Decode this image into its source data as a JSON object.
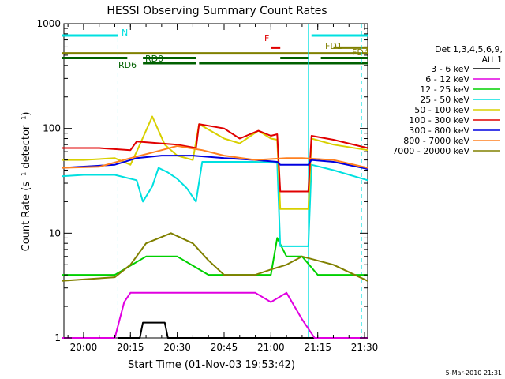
{
  "chart_data": {
    "type": "line",
    "title": "HESSI Observing Summary Count Rates",
    "xlabel": "Start Time (01-Nov-03 19:53:42)",
    "ylabel": "Count Rate (s⁻¹ detector⁻¹)",
    "yscale": "log",
    "ylim": [
      1,
      1000
    ],
    "xlim": [
      "19:53:42",
      "21:31:00"
    ],
    "x_ticks": [
      "20:00",
      "20:15",
      "20:30",
      "20:45",
      "21:00",
      "21:15",
      "21:30"
    ],
    "y_ticks": [
      "1",
      "10",
      "100",
      "1000"
    ],
    "grid": false,
    "legend_position": "right",
    "legend_header": [
      "Det 1,3,4,5,6,9,",
      "Att 1"
    ],
    "footer_date": "5-Mar-2010 21:31",
    "series": [
      {
        "name": "3 - 6 keV",
        "color": "#000000",
        "points": [
          [
            "20:11",
            1
          ],
          [
            "20:18",
            1
          ],
          [
            "20:19",
            1.4
          ],
          [
            "20:26",
            1.4
          ],
          [
            "20:27",
            1
          ],
          [
            "21:31",
            1
          ]
        ]
      },
      {
        "name": "6 - 12 keV",
        "color": "#e000e0",
        "points": [
          [
            "19:53",
            1
          ],
          [
            "20:10",
            1
          ],
          [
            "20:13",
            2.2
          ],
          [
            "20:15",
            2.7
          ],
          [
            "20:30",
            2.7
          ],
          [
            "20:45",
            2.7
          ],
          [
            "20:55",
            2.7
          ],
          [
            "21:00",
            2.2
          ],
          [
            "21:05",
            2.7
          ],
          [
            "21:10",
            1.5
          ],
          [
            "21:14",
            1
          ],
          [
            "21:31",
            1
          ]
        ]
      },
      {
        "name": "12 - 25 keV",
        "color": "#00d000",
        "points": [
          [
            "19:53",
            4
          ],
          [
            "20:10",
            4
          ],
          [
            "20:20",
            6
          ],
          [
            "20:30",
            6
          ],
          [
            "20:40",
            4
          ],
          [
            "20:50",
            4
          ],
          [
            "21:00",
            4
          ],
          [
            "21:02",
            9
          ],
          [
            "21:05",
            6
          ],
          [
            "21:10",
            6
          ],
          [
            "21:15",
            4
          ],
          [
            "21:31",
            4
          ]
        ]
      },
      {
        "name": "25 - 50 keV",
        "color": "#00e0e0",
        "points": [
          [
            "19:53",
            35
          ],
          [
            "20:00",
            36
          ],
          [
            "20:10",
            36
          ],
          [
            "20:17",
            32
          ],
          [
            "20:19",
            20
          ],
          [
            "20:22",
            28
          ],
          [
            "20:24",
            42
          ],
          [
            "20:27",
            38
          ],
          [
            "20:30",
            33
          ],
          [
            "20:33",
            27
          ],
          [
            "20:36",
            20
          ],
          [
            "20:38",
            48
          ],
          [
            "20:45",
            48
          ],
          [
            "20:55",
            48
          ],
          [
            "21:02",
            47
          ],
          [
            "21:03",
            7.5
          ],
          [
            "21:12",
            7.5
          ],
          [
            "21:13",
            45
          ],
          [
            "21:20",
            40
          ],
          [
            "21:31",
            32
          ]
        ]
      },
      {
        "name": "50 - 100 keV",
        "color": "#d8d000",
        "points": [
          [
            "19:53",
            50
          ],
          [
            "20:00",
            50
          ],
          [
            "20:10",
            52
          ],
          [
            "20:15",
            45
          ],
          [
            "20:17",
            60
          ],
          [
            "20:22",
            130
          ],
          [
            "20:26",
            70
          ],
          [
            "20:30",
            55
          ],
          [
            "20:35",
            50
          ],
          [
            "20:37",
            110
          ],
          [
            "20:45",
            80
          ],
          [
            "20:50",
            72
          ],
          [
            "20:56",
            95
          ],
          [
            "21:00",
            80
          ],
          [
            "21:02",
            78
          ],
          [
            "21:03",
            17
          ],
          [
            "21:12",
            17
          ],
          [
            "21:13",
            80
          ],
          [
            "21:20",
            70
          ],
          [
            "21:31",
            62
          ]
        ]
      },
      {
        "name": "100 - 300 keV",
        "color": "#e00000",
        "points": [
          [
            "19:53",
            65
          ],
          [
            "20:05",
            65
          ],
          [
            "20:15",
            62
          ],
          [
            "20:17",
            75
          ],
          [
            "20:30",
            70
          ],
          [
            "20:36",
            65
          ],
          [
            "20:37",
            110
          ],
          [
            "20:45",
            100
          ],
          [
            "20:50",
            80
          ],
          [
            "20:56",
            95
          ],
          [
            "21:00",
            85
          ],
          [
            "21:02",
            88
          ],
          [
            "21:03",
            25
          ],
          [
            "21:12",
            25
          ],
          [
            "21:13",
            85
          ],
          [
            "21:20",
            78
          ],
          [
            "21:31",
            65
          ]
        ]
      },
      {
        "name": "300 - 800 keV",
        "color": "#0000e0",
        "points": [
          [
            "19:53",
            42
          ],
          [
            "20:10",
            45
          ],
          [
            "20:17",
            52
          ],
          [
            "20:25",
            55
          ],
          [
            "20:35",
            55
          ],
          [
            "20:45",
            52
          ],
          [
            "20:55",
            50
          ],
          [
            "21:02",
            48
          ],
          [
            "21:03",
            45
          ],
          [
            "21:12",
            45
          ],
          [
            "21:13",
            50
          ],
          [
            "21:20",
            48
          ],
          [
            "21:31",
            41
          ]
        ]
      },
      {
        "name": "800 - 7000 keV",
        "color": "#ff8020",
        "points": [
          [
            "19:53",
            42
          ],
          [
            "20:05",
            43
          ],
          [
            "20:15",
            52
          ],
          [
            "20:25",
            62
          ],
          [
            "20:30",
            68
          ],
          [
            "20:38",
            62
          ],
          [
            "20:45",
            55
          ],
          [
            "20:55",
            50
          ],
          [
            "21:05",
            52
          ],
          [
            "21:10",
            52
          ],
          [
            "21:20",
            50
          ],
          [
            "21:31",
            42
          ]
        ]
      },
      {
        "name": "7000 - 20000 keV",
        "color": "#808000",
        "points": [
          [
            "19:53",
            3.5
          ],
          [
            "20:10",
            3.8
          ],
          [
            "20:15",
            5
          ],
          [
            "20:20",
            8
          ],
          [
            "20:28",
            10
          ],
          [
            "20:35",
            8
          ],
          [
            "20:40",
            5.5
          ],
          [
            "20:45",
            4
          ],
          [
            "20:55",
            4
          ],
          [
            "21:00",
            4.5
          ],
          [
            "21:05",
            5
          ],
          [
            "21:10",
            6
          ],
          [
            "21:20",
            5
          ],
          [
            "21:31",
            3.5
          ]
        ]
      }
    ],
    "flags": [
      {
        "label": "N",
        "color": "#00e0e0",
        "level": 770,
        "segments": [
          [
            "19:53",
            "20:11"
          ],
          [
            "21:13",
            "21:31"
          ]
        ]
      },
      {
        "label": "F",
        "color": "#e00000",
        "level": 590,
        "segments": [
          [
            "21:00",
            "21:03"
          ]
        ]
      },
      {
        "label": "FD1",
        "color": "#808000",
        "level": 520,
        "segments": [
          [
            "19:53",
            "21:31"
          ]
        ]
      },
      {
        "label": "FD4",
        "color": "#808000",
        "level": 590,
        "segments": [
          [
            "21:20",
            "21:31"
          ]
        ]
      },
      {
        "label": "RD0",
        "color": "#006000",
        "level": 420,
        "segments": [
          [
            "20:19",
            "20:36"
          ],
          [
            "20:37",
            "21:31"
          ]
        ]
      },
      {
        "label": "RD6",
        "color": "#006000",
        "level": 470,
        "segments": [
          [
            "19:53",
            "20:14"
          ],
          [
            "20:19",
            "20:36"
          ],
          [
            "21:03",
            "21:12"
          ],
          [
            "21:16",
            "21:31"
          ]
        ]
      }
    ],
    "vertical_markers": [
      {
        "time": "20:11",
        "color": "#00e0e0",
        "style": "dashed"
      },
      {
        "time": "21:12",
        "color": "#00e0e0",
        "style": "solid"
      },
      {
        "time": "21:29",
        "color": "#00e0e0",
        "style": "dashed"
      }
    ]
  }
}
